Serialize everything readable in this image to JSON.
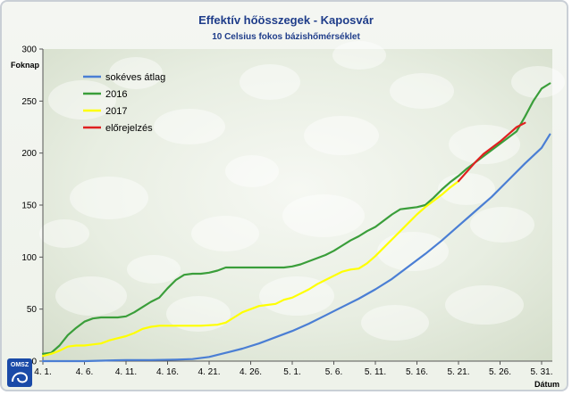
{
  "chart_data": {
    "type": "line",
    "title": "Effektív hőösszegek - Kaposvár",
    "subtitle": "10 Celsius fokos bázishőmérséklet",
    "ylabel": "Foknap",
    "xlabel": "Dátum",
    "ylim": [
      0,
      300
    ],
    "yticks": [
      "0",
      "50",
      "100",
      "150",
      "200",
      "250",
      "300"
    ],
    "x_range": [
      1,
      61
    ],
    "xticks": [
      {
        "x": 1,
        "label": "4. 1."
      },
      {
        "x": 6,
        "label": "4. 6."
      },
      {
        "x": 11,
        "label": "4. 11."
      },
      {
        "x": 16,
        "label": "4. 16."
      },
      {
        "x": 21,
        "label": "4. 21."
      },
      {
        "x": 26,
        "label": "4. 26."
      },
      {
        "x": 31,
        "label": "5. 1."
      },
      {
        "x": 36,
        "label": "5. 6."
      },
      {
        "x": 41,
        "label": "5. 11."
      },
      {
        "x": 46,
        "label": "5. 16."
      },
      {
        "x": 51,
        "label": "5. 21."
      },
      {
        "x": 56,
        "label": "5. 26."
      },
      {
        "x": 61,
        "label": "5. 31."
      }
    ],
    "legend_position": "top-left",
    "series": [
      {
        "name": "sokéves átlag",
        "color": "#4a7ed4",
        "points": [
          [
            1,
            0
          ],
          [
            6,
            0
          ],
          [
            11,
            1
          ],
          [
            14,
            1
          ],
          [
            17,
            1.5
          ],
          [
            19,
            2
          ],
          [
            21,
            4
          ],
          [
            23,
            8
          ],
          [
            25,
            12
          ],
          [
            27,
            17
          ],
          [
            29,
            23
          ],
          [
            31,
            29
          ],
          [
            33,
            36
          ],
          [
            35,
            44
          ],
          [
            37,
            52
          ],
          [
            39,
            60
          ],
          [
            41,
            69
          ],
          [
            43,
            79
          ],
          [
            45,
            91
          ],
          [
            47,
            103
          ],
          [
            49,
            116
          ],
          [
            51,
            130
          ],
          [
            53,
            144
          ],
          [
            55,
            158
          ],
          [
            57,
            174
          ],
          [
            59,
            190
          ],
          [
            61,
            205
          ],
          [
            62,
            218
          ]
        ]
      },
      {
        "name": "2016",
        "color": "#3a9e3a",
        "points": [
          [
            1,
            7
          ],
          [
            2,
            8
          ],
          [
            3,
            15
          ],
          [
            4,
            25
          ],
          [
            5,
            32
          ],
          [
            6,
            38
          ],
          [
            7,
            41
          ],
          [
            8,
            42
          ],
          [
            9,
            42
          ],
          [
            10,
            42
          ],
          [
            11,
            43
          ],
          [
            12,
            47
          ],
          [
            13,
            52
          ],
          [
            14,
            57
          ],
          [
            15,
            61
          ],
          [
            16,
            70
          ],
          [
            17,
            78
          ],
          [
            18,
            83
          ],
          [
            19,
            84
          ],
          [
            20,
            84
          ],
          [
            21,
            85
          ],
          [
            22,
            87
          ],
          [
            23,
            90
          ],
          [
            24,
            90
          ],
          [
            26,
            90
          ],
          [
            28,
            90
          ],
          [
            30,
            90
          ],
          [
            31,
            91
          ],
          [
            32,
            93
          ],
          [
            33,
            96
          ],
          [
            34,
            99
          ],
          [
            35,
            102
          ],
          [
            36,
            106
          ],
          [
            37,
            111
          ],
          [
            38,
            116
          ],
          [
            39,
            120
          ],
          [
            40,
            125
          ],
          [
            41,
            129
          ],
          [
            42,
            135
          ],
          [
            43,
            141
          ],
          [
            44,
            146
          ],
          [
            45,
            147
          ],
          [
            46,
            148
          ],
          [
            47,
            150
          ],
          [
            48,
            157
          ],
          [
            49,
            165
          ],
          [
            50,
            172
          ],
          [
            51,
            178
          ],
          [
            52,
            185
          ],
          [
            53,
            191
          ],
          [
            54,
            197
          ],
          [
            55,
            203
          ],
          [
            56,
            209
          ],
          [
            57,
            215
          ],
          [
            58,
            221
          ],
          [
            59,
            235
          ],
          [
            60,
            250
          ],
          [
            61,
            262
          ],
          [
            62,
            267
          ]
        ]
      },
      {
        "name": "2017",
        "color": "#ffff00",
        "points": [
          [
            1,
            5
          ],
          [
            2,
            7
          ],
          [
            3,
            10
          ],
          [
            4,
            14
          ],
          [
            5,
            15
          ],
          [
            6,
            15
          ],
          [
            7,
            16
          ],
          [
            8,
            17
          ],
          [
            9,
            20
          ],
          [
            10,
            22
          ],
          [
            11,
            24
          ],
          [
            12,
            27
          ],
          [
            13,
            31
          ],
          [
            14,
            33
          ],
          [
            15,
            34
          ],
          [
            16,
            34
          ],
          [
            18,
            34
          ],
          [
            20,
            34
          ],
          [
            22,
            35
          ],
          [
            23,
            37
          ],
          [
            24,
            42
          ],
          [
            25,
            47
          ],
          [
            26,
            50
          ],
          [
            27,
            53
          ],
          [
            28,
            54
          ],
          [
            29,
            55
          ],
          [
            30,
            59
          ],
          [
            31,
            61
          ],
          [
            32,
            65
          ],
          [
            33,
            69
          ],
          [
            34,
            74
          ],
          [
            35,
            78
          ],
          [
            36,
            82
          ],
          [
            37,
            86
          ],
          [
            38,
            88
          ],
          [
            39,
            89
          ],
          [
            40,
            94
          ],
          [
            41,
            101
          ],
          [
            42,
            109
          ],
          [
            43,
            117
          ],
          [
            44,
            125
          ],
          [
            45,
            133
          ],
          [
            46,
            141
          ],
          [
            47,
            148
          ],
          [
            48,
            154
          ],
          [
            49,
            160
          ],
          [
            50,
            167
          ],
          [
            51,
            173
          ]
        ]
      },
      {
        "name": "előrejelzés",
        "color": "#e02020",
        "points": [
          [
            51,
            173
          ],
          [
            52,
            182
          ],
          [
            53,
            191
          ],
          [
            54,
            199
          ],
          [
            55,
            205
          ],
          [
            56,
            211
          ],
          [
            57,
            218
          ],
          [
            58,
            225
          ],
          [
            59,
            229
          ]
        ]
      }
    ]
  },
  "logo": {
    "text": "OMSZ",
    "color": "#1a4aa8"
  }
}
